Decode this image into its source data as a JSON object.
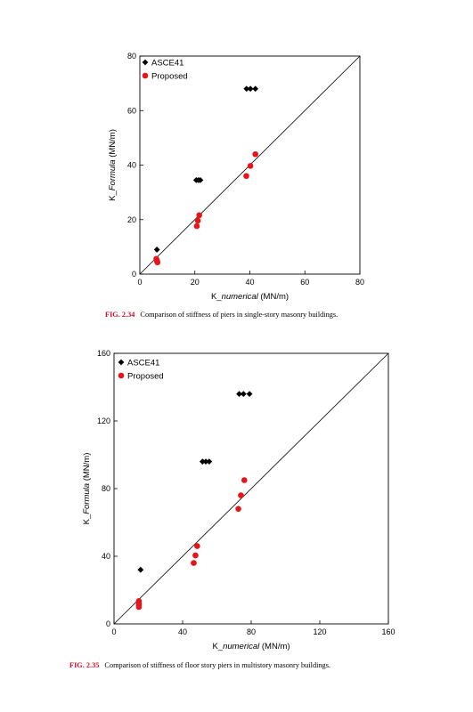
{
  "chart_data": [
    {
      "type": "scatter",
      "figure_label": "FIG. 2.34",
      "caption": "Comparison of stiffness of piers in single-story masonry buildings.",
      "xlabel_prefix": "K_",
      "xlabel_italic": "numerical",
      "xlabel_unit": " (MN/m)",
      "ylabel_prefix": "K_",
      "ylabel_italic": "Formula",
      "ylabel_unit": " (MN/m)",
      "xlim": [
        0,
        80
      ],
      "ylim": [
        0,
        80
      ],
      "xticks": [
        0,
        20,
        40,
        60,
        80
      ],
      "yticks": [
        0,
        20,
        40,
        60,
        80
      ],
      "grid": false,
      "reference_line": "y=x",
      "legend_position": "top-left",
      "series": [
        {
          "name": "ASCE41",
          "marker": "diamond",
          "color": "#000000",
          "points": [
            [
              6.2,
              9
            ],
            [
              20.5,
              34.5
            ],
            [
              21.3,
              34.5
            ],
            [
              22,
              34.5
            ],
            [
              38.8,
              68
            ],
            [
              40.2,
              68
            ],
            [
              42,
              68
            ]
          ]
        },
        {
          "name": "Proposed",
          "marker": "circle",
          "color": "#e8141a",
          "points": [
            [
              6,
              5.6
            ],
            [
              6.2,
              5
            ],
            [
              6.3,
              4.6
            ],
            [
              6.4,
              4.3
            ],
            [
              20.7,
              17.6
            ],
            [
              21.1,
              19.6
            ],
            [
              21.6,
              21.6
            ],
            [
              38.7,
              36
            ],
            [
              40.2,
              39.7
            ],
            [
              42,
              44
            ]
          ]
        }
      ]
    },
    {
      "type": "scatter",
      "figure_label": "FIG. 2.35",
      "caption": "Comparison of stiffness of floor story piers in multistory masonry buildings.",
      "xlabel_prefix": "K_",
      "xlabel_italic": "numerical",
      "xlabel_unit": " (MN/m)",
      "ylabel_prefix": "K_",
      "ylabel_italic": "Formula",
      "ylabel_unit": " (MN/m)",
      "xlim": [
        0,
        160
      ],
      "ylim": [
        0,
        160
      ],
      "xticks": [
        0,
        40,
        80,
        120,
        160
      ],
      "yticks": [
        0,
        40,
        80,
        120,
        160
      ],
      "grid": false,
      "reference_line": "y=x",
      "legend_position": "top-left",
      "series": [
        {
          "name": "ASCE41",
          "marker": "diamond",
          "color": "#000000",
          "points": [
            [
              15.5,
              32
            ],
            [
              51.6,
              96
            ],
            [
              53.5,
              96
            ],
            [
              55.5,
              96
            ],
            [
              73,
              136
            ],
            [
              75.5,
              136
            ],
            [
              79,
              136
            ]
          ]
        },
        {
          "name": "Proposed",
          "marker": "circle",
          "color": "#e8141a",
          "points": [
            [
              14.5,
              13.5
            ],
            [
              14.5,
              12
            ],
            [
              14.5,
              11
            ],
            [
              14.5,
              10
            ],
            [
              46.5,
              36
            ],
            [
              47.5,
              40.5
            ],
            [
              48.5,
              46
            ],
            [
              72.5,
              68
            ],
            [
              74,
              76
            ],
            [
              76,
              85
            ]
          ]
        }
      ]
    }
  ]
}
